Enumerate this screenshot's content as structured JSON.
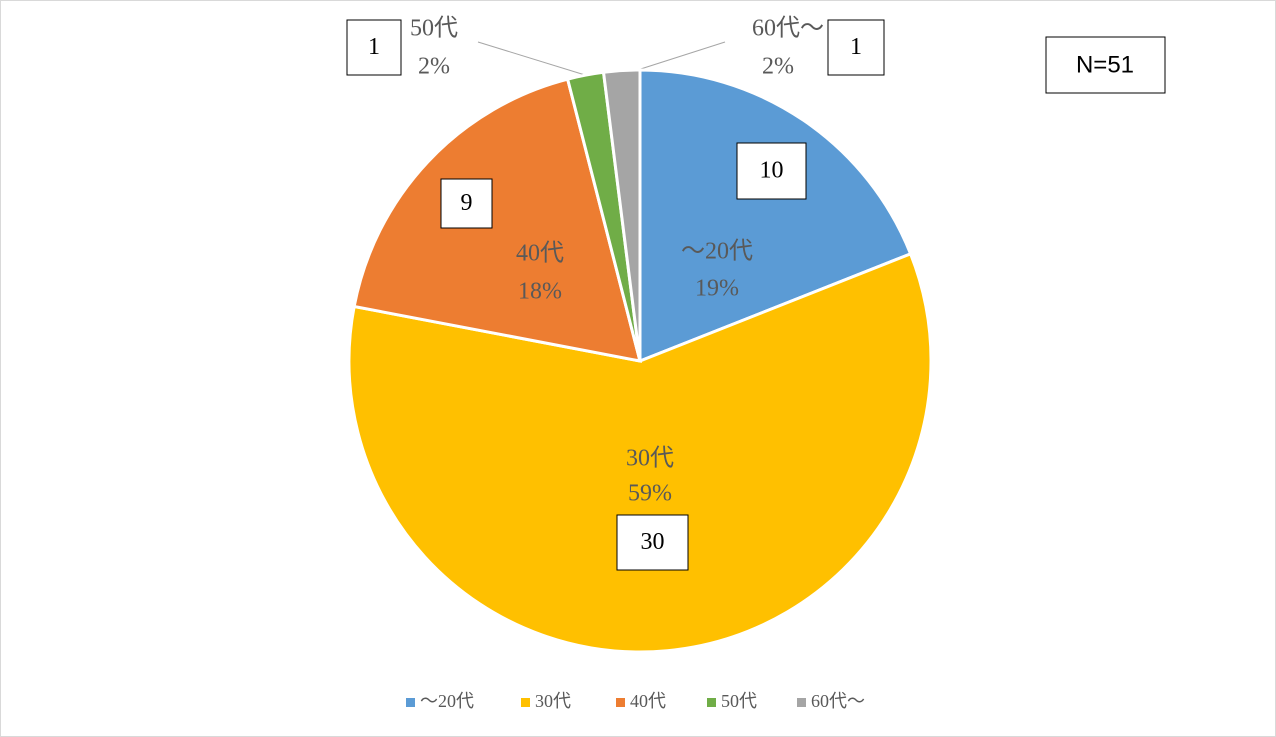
{
  "chart_data": {
    "type": "pie",
    "categories": [
      "〜20代",
      "30代",
      "40代",
      "50代",
      "60代〜"
    ],
    "values": [
      19,
      59,
      18,
      2,
      2
    ],
    "value_labels": [
      "19%",
      "59%",
      "18%",
      "2%",
      "2%"
    ],
    "counts": [
      10,
      30,
      9,
      1,
      1
    ],
    "colors": [
      "#5b9bd5",
      "#ffc000",
      "#ed7d31",
      "#70ad47",
      "#a5a5a5"
    ],
    "annotation": "N=51",
    "legend": "bottom"
  }
}
